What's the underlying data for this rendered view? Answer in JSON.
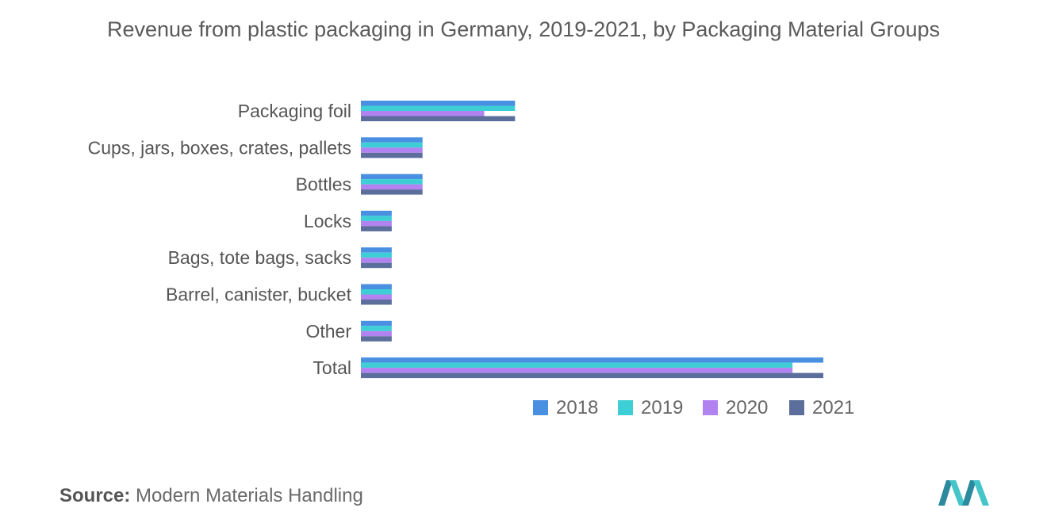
{
  "title": "Revenue from plastic packaging in Germany, 2019-2021, by Packaging Material Groups",
  "source": {
    "label": "Source:",
    "text": "Modern Materials Handling"
  },
  "colors": {
    "2018": "#4a90e2",
    "2019": "#3ecfd6",
    "2020": "#b183f0",
    "2021": "#5b6e9c"
  },
  "chart_data": {
    "type": "bar",
    "orientation": "horizontal",
    "title": "Revenue from plastic packaging in Germany, 2019-2021, by Packaging Material Groups",
    "xlabel": "",
    "ylabel": "",
    "grid": false,
    "legend_position": "bottom",
    "categories": [
      "Packaging foil",
      "Cups, jars, boxes, crates, pallets",
      "Bottles",
      "Locks",
      "Bags, tote bags, sacks",
      "Barrel, canister, bucket",
      "Other",
      "Total"
    ],
    "xlim": [
      0,
      15
    ],
    "series": [
      {
        "name": "2018",
        "values": [
          5.0,
          2.0,
          2.0,
          1.0,
          1.0,
          1.0,
          1.0,
          15.0
        ]
      },
      {
        "name": "2019",
        "values": [
          5.0,
          2.0,
          2.0,
          1.0,
          1.0,
          1.0,
          1.0,
          14.0
        ]
      },
      {
        "name": "2020",
        "values": [
          4.0,
          2.0,
          2.0,
          1.0,
          1.0,
          1.0,
          1.0,
          14.0
        ]
      },
      {
        "name": "2021",
        "values": [
          5.0,
          2.0,
          2.0,
          1.0,
          1.0,
          1.0,
          1.0,
          15.0
        ]
      }
    ]
  }
}
